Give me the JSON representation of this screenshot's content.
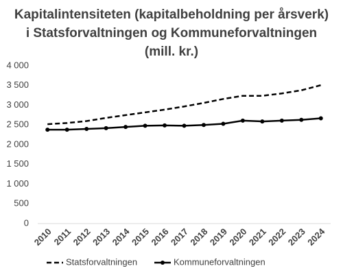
{
  "chart_data": {
    "type": "line",
    "title": "Kapitalintensiteten (kapitalbeholdning per årsverk) i Statsforvaltningen og Kommuneforvaltningen (mill. kr.)",
    "categories": [
      "2010",
      "2011",
      "2012",
      "2013",
      "2014",
      "2015",
      "2016",
      "2017",
      "2018",
      "2019",
      "2020",
      "2021",
      "2022",
      "2023",
      "2024"
    ],
    "series": [
      {
        "name": "Statsforvaltningen",
        "color": "#000000",
        "style": "dashed",
        "marker": false,
        "values": [
          2520,
          2550,
          2600,
          2680,
          2750,
          2820,
          2890,
          2970,
          3060,
          3160,
          3240,
          3240,
          3300,
          3380,
          3510
        ]
      },
      {
        "name": "Kommuneforvaltningen",
        "color": "#000000",
        "style": "solid",
        "marker": true,
        "values": [
          2380,
          2380,
          2400,
          2420,
          2450,
          2480,
          2490,
          2480,
          2500,
          2530,
          2610,
          2590,
          2610,
          2630,
          2670
        ]
      }
    ],
    "ylim": [
      0,
      4000
    ],
    "yticks": [
      0,
      500,
      {
        "value": 1000,
        "label": "1 000"
      },
      {
        "value": 1500,
        "label": "1 500"
      },
      {
        "value": 2000,
        "label": "2 000"
      },
      {
        "value": 2500,
        "label": "2 500"
      },
      {
        "value": 3000,
        "label": "3 000"
      },
      {
        "value": 3500,
        "label": "3 500"
      },
      {
        "value": 4000,
        "label": "4 000"
      }
    ],
    "grid": false,
    "legend": "bottom"
  }
}
